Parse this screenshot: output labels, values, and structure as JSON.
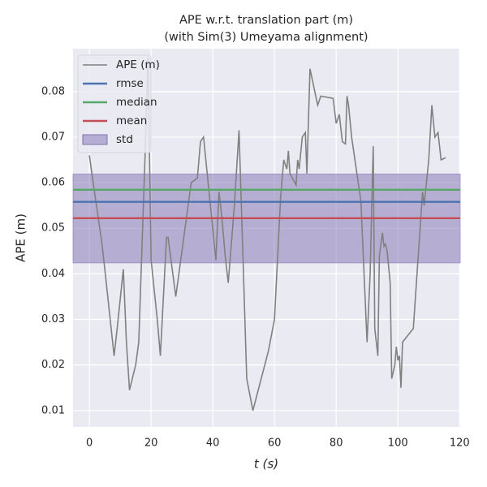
{
  "chart_data": {
    "type": "line",
    "title": [
      "APE w.r.t. translation part (m)",
      "(with Sim(3) Umeyama alignment)"
    ],
    "xlabel": "t (s)",
    "ylabel": "APE (m)",
    "x": [
      0,
      1,
      4,
      5,
      8,
      9,
      11,
      12,
      13,
      15,
      16,
      18,
      19,
      20,
      22,
      23,
      24,
      25,
      25.5,
      28,
      33,
      35,
      36,
      37,
      41,
      42,
      43,
      44,
      45,
      47,
      48.5,
      51,
      53,
      58,
      60,
      62,
      63,
      64,
      64.5,
      65,
      67,
      67.5,
      68,
      69,
      70,
      70.5,
      71.5,
      74,
      75,
      79,
      80,
      81,
      82,
      83,
      83.5,
      84,
      85,
      88,
      90,
      91,
      92,
      92.5,
      93.5,
      94,
      95,
      95.5,
      96,
      96.5,
      97.5,
      98,
      99,
      99.5,
      100,
      100.5,
      101,
      101.5,
      105,
      108,
      108.5,
      110,
      111,
      112,
      113,
      114,
      115.5
    ],
    "series": [
      {
        "name": "APE (m)",
        "color": "#808080",
        "values": [
          0.066,
          0.061,
          0.047,
          0.041,
          0.022,
          0.028,
          0.041,
          0.025,
          0.0145,
          0.02,
          0.025,
          0.065,
          0.0877,
          0.043,
          0.03,
          0.022,
          0.035,
          0.048,
          0.048,
          0.035,
          0.06,
          0.061,
          0.069,
          0.07,
          0.043,
          0.058,
          0.052,
          0.044,
          0.038,
          0.055,
          0.0715,
          0.017,
          0.01,
          0.023,
          0.03,
          0.057,
          0.065,
          0.063,
          0.067,
          0.062,
          0.0595,
          0.065,
          0.063,
          0.07,
          0.071,
          0.062,
          0.085,
          0.077,
          0.079,
          0.0785,
          0.073,
          0.075,
          0.069,
          0.0685,
          0.079,
          0.077,
          0.07,
          0.056,
          0.025,
          0.04,
          0.068,
          0.028,
          0.022,
          0.044,
          0.049,
          0.046,
          0.0465,
          0.045,
          0.038,
          0.017,
          0.02,
          0.024,
          0.021,
          0.022,
          0.015,
          0.025,
          0.028,
          0.058,
          0.055,
          0.065,
          0.077,
          0.07,
          0.071,
          0.065,
          0.0655
        ]
      }
    ],
    "stats": [
      {
        "name": "rmse",
        "color": "#4c72b0",
        "value": 0.0558
      },
      {
        "name": "median",
        "color": "#55a868",
        "value": 0.05845
      },
      {
        "name": "mean",
        "color": "#c44e52",
        "value": 0.0522
      }
    ],
    "std": {
      "name": "std",
      "color": "#8172b2",
      "values": [
        0.0424,
        0.0619
      ]
    },
    "xlim": [
      -5.3,
      120.2
    ],
    "ylim": [
      0.0064,
      0.0894
    ],
    "xticks": [
      0,
      20,
      40,
      60,
      80,
      100,
      120
    ],
    "yticks": [
      0.01,
      0.02,
      0.03,
      0.04,
      0.05,
      0.06,
      0.07,
      0.08
    ],
    "grid": true,
    "legend": "upper left"
  }
}
